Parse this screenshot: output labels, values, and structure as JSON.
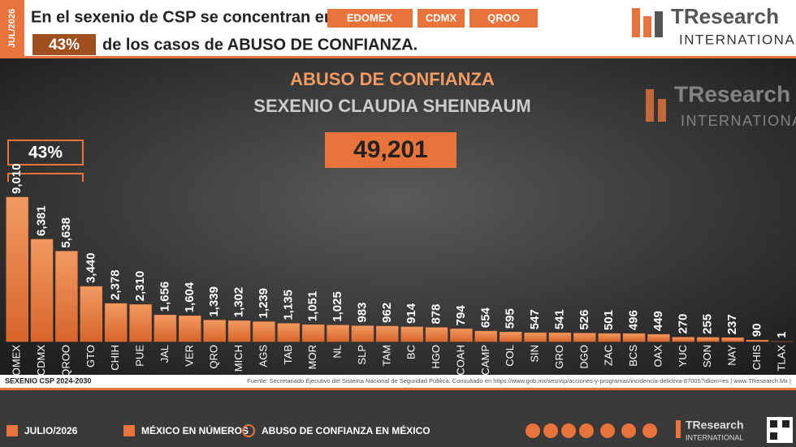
{
  "header": {
    "date": "JUL/2026",
    "line1": "En el sexenio de CSP se concentran en",
    "states": [
      "EDOMEX",
      "CDMX",
      "QROO"
    ],
    "share": "43%",
    "line2": "de los casos de ABUSO DE CONFIANZA.",
    "logo_main": "TResearch",
    "logo_sub": "INTERNATIONAL"
  },
  "chart_data": {
    "type": "bar",
    "title": "ABUSO DE CONFIANZA",
    "subtitle": "SEXENIO CLAUDIA SHEINBAUM",
    "total": "49,201",
    "bracket_label": "43%",
    "color": "#e8743b",
    "categories": [
      "EDOMEX",
      "CDMX",
      "QROO",
      "GTO",
      "CHIH",
      "PUE",
      "JAL",
      "VER",
      "QRO",
      "MICH",
      "AGS",
      "TAB",
      "MOR",
      "NL",
      "SLP",
      "TAM",
      "BC",
      "HGO",
      "COAH",
      "CAMP",
      "COL",
      "SIN",
      "GRO",
      "DGO",
      "ZAC",
      "BCS",
      "OAX",
      "YUC",
      "SON",
      "NAY",
      "CHIS",
      "TLAX"
    ],
    "values": [
      9010,
      6381,
      5638,
      3440,
      2378,
      2310,
      1656,
      1604,
      1339,
      1302,
      1239,
      1135,
      1051,
      1025,
      983,
      962,
      914,
      878,
      794,
      654,
      595,
      547,
      541,
      526,
      501,
      496,
      449,
      270,
      255,
      237,
      90,
      1
    ],
    "value_labels": [
      "9,010",
      "6,381",
      "5,638",
      "3,440",
      "2,378",
      "2,310",
      "1,656",
      "1,604",
      "1,339",
      "1,302",
      "1,239",
      "1,135",
      "1,051",
      "1,025",
      "983",
      "962",
      "914",
      "878",
      "794",
      "654",
      "595",
      "547",
      "541",
      "526",
      "501",
      "496",
      "449",
      "270",
      "255",
      "237",
      "90",
      "1"
    ]
  },
  "footer": {
    "period": "SEXENIO CSP 2024-2030",
    "source": "Fuente: Secretariado Ejecutivo del Sistema Nacional de Seguridad Pública. Consultado en https://www.gob.mx/sesnsp/acciones-y-programas/incidencia-delictiva-87005?idiom=es | www.TResearch.Mx |",
    "date": "JULIO/2026",
    "link1": "MÉXICO EN NÚMEROS",
    "link2": "ABUSO DE CONFIANZA EN MÉXICO",
    "logo_main": "TResearch",
    "logo_sub": "INTERNATIONAL"
  }
}
